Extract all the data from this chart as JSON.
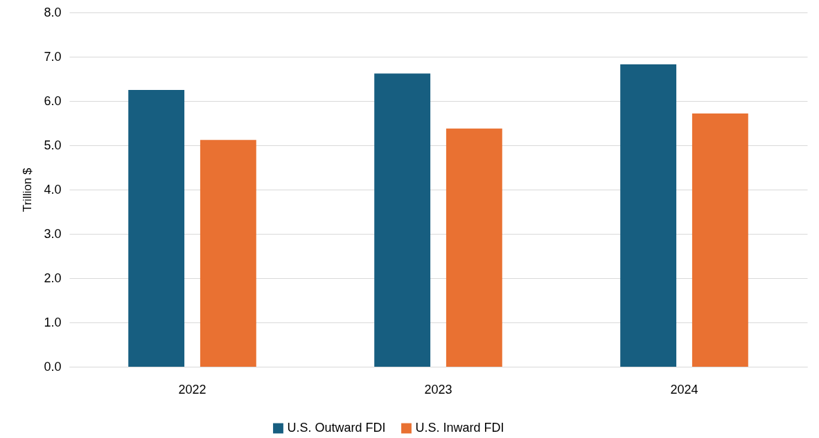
{
  "chart_data": {
    "type": "bar",
    "ylabel": "Trillion $",
    "categories": [
      "2022",
      "2023",
      "2024"
    ],
    "series": [
      {
        "name": "U.S. Outward FDI",
        "color": "#175e80",
        "values": [
          6.25,
          6.62,
          6.83
        ]
      },
      {
        "name": "U.S. Inward FDI",
        "color": "#e97132",
        "values": [
          5.12,
          5.38,
          5.72
        ]
      }
    ],
    "ylim": [
      0,
      8
    ],
    "yticks": [
      {
        "value": 0,
        "label": "0.0"
      },
      {
        "value": 1,
        "label": "1.0"
      },
      {
        "value": 2,
        "label": "2.0"
      },
      {
        "value": 3,
        "label": "3.0"
      },
      {
        "value": 4,
        "label": "4.0"
      },
      {
        "value": 5,
        "label": "5.0"
      },
      {
        "value": 6,
        "label": "6.0"
      },
      {
        "value": 7,
        "label": "7.0"
      },
      {
        "value": 8,
        "label": "8.0"
      }
    ],
    "grid": "y",
    "legend": "bottom"
  }
}
